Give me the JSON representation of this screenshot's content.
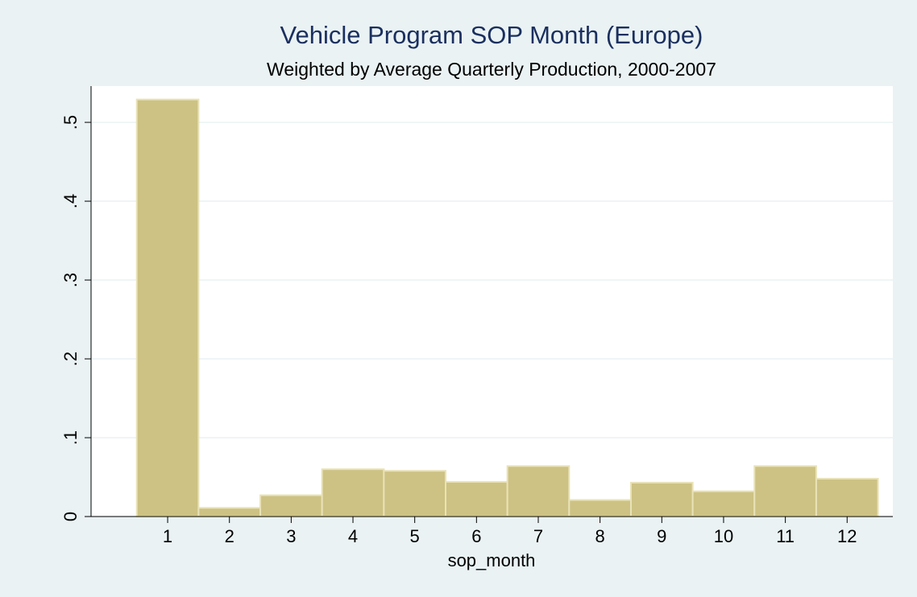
{
  "chart_data": {
    "type": "histogram",
    "title": "Vehicle Program SOP Month (Europe)",
    "subtitle": "Weighted by Average Quarterly Production, 2000-2007",
    "x_label": "sop_month",
    "bins": [
      0.5,
      1.5,
      2.5,
      3.5,
      4.5,
      5.5,
      6.5,
      7.5,
      8.5,
      9.5,
      10.5,
      11.5,
      12.5
    ],
    "values": [
      0.529,
      0.011,
      0.027,
      0.06,
      0.058,
      0.044,
      0.064,
      0.021,
      0.043,
      0.032,
      0.064,
      0.048
    ],
    "color": "#cdc283",
    "xlim": [
      -0.24,
      12.74
    ],
    "xticks": [
      1,
      2,
      3,
      4,
      5,
      6,
      7,
      8,
      9,
      10,
      11,
      12
    ],
    "ylim": [
      0,
      0.546
    ],
    "yticks": [
      0,
      {
        "value": 0.1,
        "label": ".1"
      },
      {
        "value": 0.2,
        "label": ".2"
      },
      {
        "value": 0.3,
        "label": ".3"
      },
      {
        "value": 0.4,
        "label": ".4"
      },
      {
        "value": 0.5,
        "label": ".5"
      }
    ],
    "grid": true
  }
}
